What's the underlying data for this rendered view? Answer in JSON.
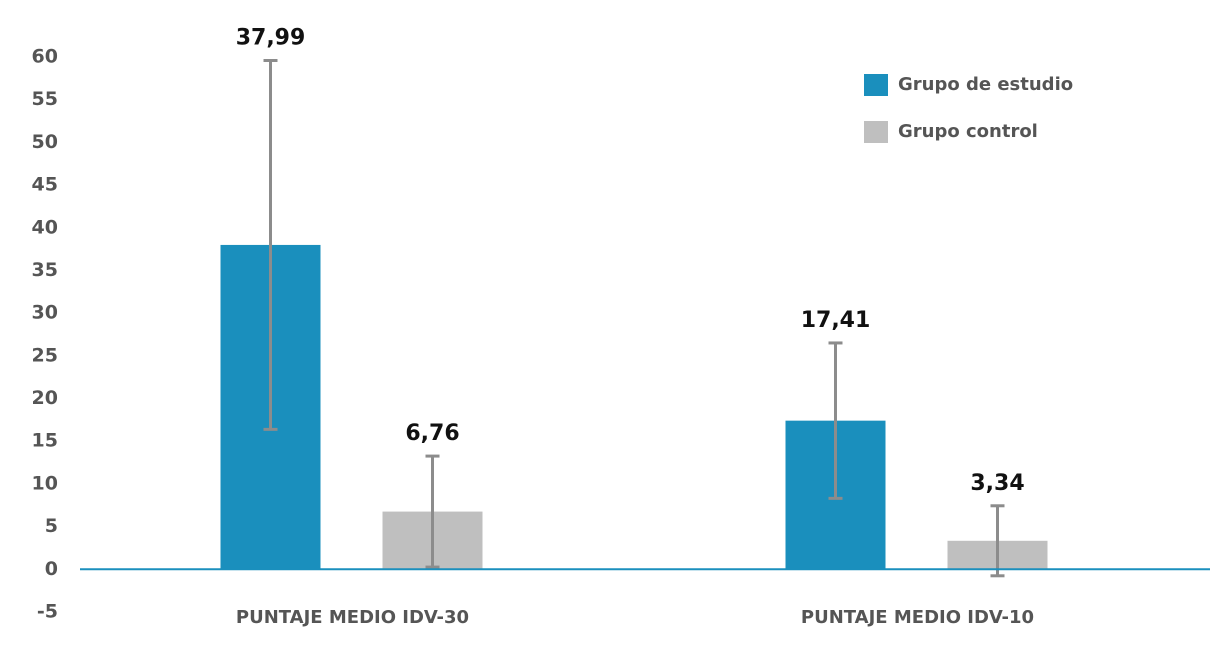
{
  "chart_data": {
    "type": "bar",
    "categories": [
      "PUNTAJE MEDIO IDV-30",
      "PUNTAJE MEDIO IDV-10"
    ],
    "series": [
      {
        "name": "Grupo de estudio",
        "color": "#1a8fbd",
        "values": [
          37.99,
          17.41
        ],
        "value_labels": [
          "37,99",
          "17,41"
        ],
        "errors": [
          21.6,
          9.1
        ]
      },
      {
        "name": "Grupo control",
        "color": "#bfbfbf",
        "values": [
          6.76,
          3.34
        ],
        "value_labels": [
          "6,76",
          "3,34"
        ],
        "errors": [
          6.5,
          4.1
        ]
      }
    ],
    "error_color": "#8c8c8c",
    "axis_color": "#1a8fbd",
    "ylim": [
      -5,
      60
    ],
    "yticks": [
      -5,
      0,
      5,
      10,
      15,
      20,
      25,
      30,
      35,
      40,
      45,
      50,
      55,
      60
    ],
    "grid": false,
    "legend": "top-right"
  }
}
